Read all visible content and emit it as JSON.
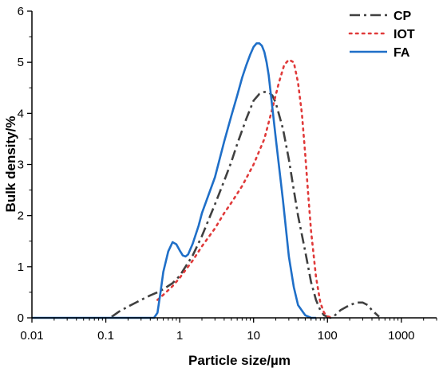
{
  "chart_data": {
    "type": "line",
    "title": "",
    "xlabel": "Particle size/µm",
    "ylabel": "Bulk density/%",
    "xscale": "log",
    "xlim": [
      0.01,
      3000
    ],
    "ylim": [
      0,
      6
    ],
    "x_ticks": [
      0.01,
      0.1,
      1,
      10,
      100,
      1000
    ],
    "x_tick_labels": [
      "0.01",
      "0.1",
      "1",
      "10",
      "100",
      "1000"
    ],
    "y_ticks": [
      0,
      1,
      2,
      3,
      4,
      5,
      6
    ],
    "y_tick_labels": [
      "0",
      "1",
      "2",
      "3",
      "4",
      "5",
      "6"
    ],
    "grid": false,
    "legend": {
      "placement": "top-right"
    },
    "series": [
      {
        "name": "CP",
        "color": "#404040",
        "style": "dash-dot",
        "x": [
          0.12,
          0.15,
          0.2,
          0.3,
          0.4,
          0.5,
          0.6,
          0.8,
          1,
          1.5,
          2,
          3,
          4,
          5,
          6,
          8,
          10,
          12,
          14,
          16,
          18,
          20,
          25,
          30,
          35,
          40,
          50,
          60,
          70,
          80,
          90,
          100,
          110,
          120,
          150,
          200,
          250,
          300,
          350,
          400,
          500
        ],
        "y": [
          0.02,
          0.12,
          0.22,
          0.35,
          0.44,
          0.5,
          0.56,
          0.68,
          0.82,
          1.22,
          1.6,
          2.22,
          2.68,
          3.05,
          3.4,
          3.9,
          4.25,
          4.38,
          4.42,
          4.41,
          4.35,
          4.2,
          3.7,
          3.1,
          2.5,
          2.0,
          1.3,
          0.7,
          0.35,
          0.15,
          0.05,
          0.02,
          0.0,
          0.02,
          0.15,
          0.25,
          0.3,
          0.3,
          0.25,
          0.15,
          0.02
        ]
      },
      {
        "name": "IOT",
        "color": "#e03a3a",
        "style": "dotted",
        "x": [
          0.5,
          0.6,
          0.8,
          1,
          1.5,
          2,
          3,
          4,
          5,
          7,
          10,
          14,
          18,
          22,
          26,
          30,
          35,
          40,
          45,
          50,
          55,
          60,
          70,
          80,
          90,
          100,
          120
        ],
        "y": [
          0.35,
          0.45,
          0.62,
          0.78,
          1.12,
          1.4,
          1.75,
          2.05,
          2.25,
          2.58,
          3.0,
          3.5,
          4.1,
          4.6,
          4.95,
          5.05,
          5.0,
          4.6,
          4.0,
          3.2,
          2.4,
          1.7,
          0.8,
          0.3,
          0.1,
          0.03,
          0.0
        ]
      },
      {
        "name": "FA",
        "color": "#1f6fc8",
        "style": "solid",
        "x": [
          0.01,
          0.45,
          0.5,
          0.55,
          0.6,
          0.7,
          0.8,
          0.9,
          1.0,
          1.1,
          1.2,
          1.3,
          1.5,
          1.8,
          2,
          3,
          4,
          5,
          6,
          7,
          8,
          9,
          10,
          11,
          12,
          13,
          14,
          15,
          16,
          18,
          20,
          25,
          30,
          35,
          40,
          50,
          60,
          70
        ],
        "y": [
          0,
          0,
          0.1,
          0.5,
          0.9,
          1.3,
          1.48,
          1.44,
          1.32,
          1.22,
          1.2,
          1.24,
          1.45,
          1.8,
          2.05,
          2.75,
          3.45,
          3.95,
          4.35,
          4.7,
          4.95,
          5.15,
          5.3,
          5.37,
          5.37,
          5.32,
          5.2,
          5.0,
          4.75,
          4.1,
          3.5,
          2.3,
          1.2,
          0.6,
          0.25,
          0.05,
          0.0,
          0.0
        ]
      }
    ]
  }
}
